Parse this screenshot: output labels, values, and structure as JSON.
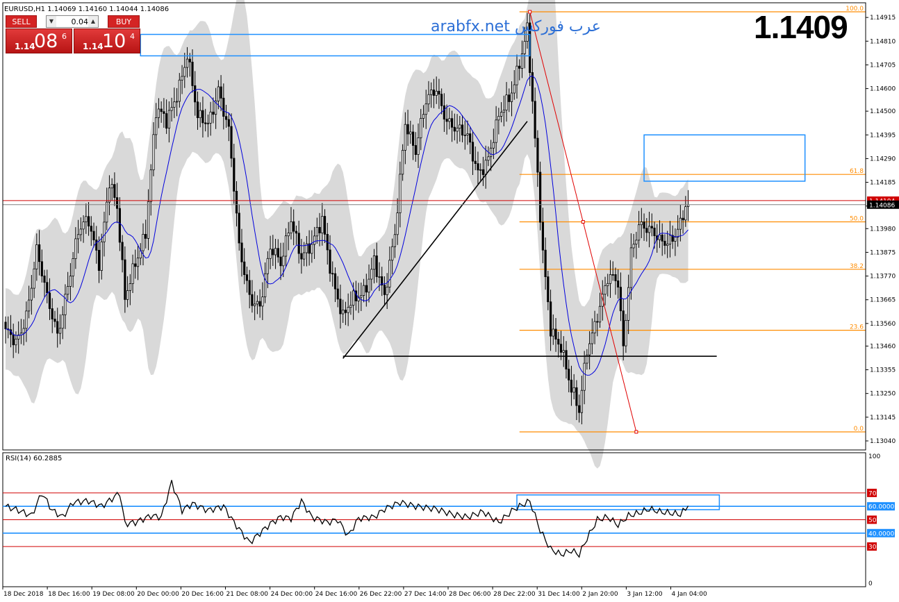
{
  "chart_header": "EURUSD,H1  1.14069 1.14160 1.14044 1.14086",
  "watermark": "arabfx.net عرب فوركس",
  "big_price": "1.1409",
  "trade_panel": {
    "sell_label": "SELL",
    "buy_label": "BUY",
    "lot": "0.04",
    "sell_small": "1.14",
    "sell_big": "08",
    "sell_sup": "6",
    "buy_small": "1.14",
    "buy_big": "10",
    "buy_sup": "4"
  },
  "colors": {
    "candle": "#000000",
    "envelope": "#d9d9d9",
    "ma": "#0000dd",
    "fib": "#ff8c00",
    "zone_box": "#1e90ff",
    "rsi_line": "#000000",
    "level_red": "#d00000",
    "level_blue": "#1e90ff",
    "bid_label": "#000000",
    "ask_label": "#d00000"
  },
  "chart_data": [
    {
      "type": "candlestick",
      "symbol": "EURUSD",
      "timeframe": "H1",
      "ohlc_last": {
        "open": 1.14069,
        "high": 1.1416,
        "low": 1.14044,
        "close": 1.14086
      },
      "y_ticks": [
        "1.14915",
        "1.14810",
        "1.14705",
        "1.14600",
        "1.14500",
        "1.14395",
        "1.14290",
        "1.14185",
        "1.14080",
        "1.13980",
        "1.13875",
        "1.13770",
        "1.13665",
        "1.13560",
        "1.13460",
        "1.13355",
        "1.13250",
        "1.13145",
        "1.13040"
      ],
      "ylim": [
        1.13,
        1.1498
      ],
      "x_ticks": [
        "18 Dec 2018",
        "18 Dec 16:00",
        "19 Dec 08:00",
        "20 Dec 00:00",
        "20 Dec 16:00",
        "21 Dec 08:00",
        "24 Dec 00:00",
        "24 Dec 16:00",
        "26 Dec 22:00",
        "27 Dec 14:00",
        "28 Dec 06:00",
        "28 Dec 22:00",
        "31 Dec 14:00",
        "2 Jan 20:00",
        "3 Jan 12:00",
        "4 Jan 04:00"
      ],
      "n_bars": 200,
      "bid_price": "1.14086",
      "ask_price": "1.14104",
      "bid": 1.14086,
      "ask": 1.14104,
      "anchors": [
        [
          0,
          1.135
        ],
        [
          4,
          1.1347
        ],
        [
          8,
          1.1362
        ],
        [
          12,
          1.1388
        ],
        [
          16,
          1.1365
        ],
        [
          20,
          1.1352
        ],
        [
          24,
          1.1375
        ],
        [
          28,
          1.1395
        ],
        [
          32,
          1.14
        ],
        [
          36,
          1.1385
        ],
        [
          40,
          1.142
        ],
        [
          43,
          1.1405
        ],
        [
          46,
          1.1365
        ],
        [
          50,
          1.1385
        ],
        [
          54,
          1.1398
        ],
        [
          58,
          1.1448
        ],
        [
          62,
          1.1445
        ],
        [
          66,
          1.146
        ],
        [
          70,
          1.1475
        ],
        [
          74,
          1.1445
        ],
        [
          78,
          1.1445
        ],
        [
          82,
          1.1462
        ],
        [
          86,
          1.144
        ],
        [
          90,
          1.1388
        ],
        [
          94,
          1.137
        ],
        [
          98,
          1.1365
        ],
        [
          102,
          1.1387
        ],
        [
          106,
          1.1382
        ],
        [
          110,
          1.1405
        ],
        [
          114,
          1.1385
        ],
        [
          118,
          1.1388
        ],
        [
          122,
          1.1403
        ],
        [
          126,
          1.1378
        ],
        [
          130,
          1.1357
        ],
        [
          134,
          1.1365
        ],
        [
          138,
          1.1372
        ],
        [
          142,
          1.1385
        ],
        [
          146,
          1.1365
        ],
        [
          150,
          1.1395
        ],
        [
          154,
          1.1448
        ],
        [
          158,
          1.1432
        ],
        [
          162,
          1.1452
        ],
        [
          166,
          1.1461
        ],
        [
          170,
          1.1448
        ],
        [
          174,
          1.144
        ],
        [
          178,
          1.1437
        ],
        [
          182,
          1.1425
        ],
        [
          186,
          1.143
        ],
        [
          190,
          1.1445
        ],
        [
          194,
          1.1455
        ],
        [
          198,
          1.1474
        ],
        [
          201,
          1.1487
        ],
        [
          204,
          1.1435
        ],
        [
          207,
          1.1385
        ],
        [
          210,
          1.1355
        ],
        [
          214,
          1.1348
        ],
        [
          218,
          1.1325
        ],
        [
          221,
          1.1315
        ],
        [
          224,
          1.1345
        ],
        [
          228,
          1.1362
        ],
        [
          232,
          1.1375
        ],
        [
          236,
          1.1372
        ],
        [
          238,
          1.1345
        ],
        [
          241,
          1.139
        ],
        [
          244,
          1.1401
        ],
        [
          248,
          1.1395
        ],
        [
          252,
          1.1392
        ],
        [
          256,
          1.1395
        ],
        [
          260,
          1.14
        ],
        [
          263,
          1.1409
        ]
      ],
      "fibonacci": [
        {
          "level": "100.0",
          "price": 1.1494
        },
        {
          "level": "61.8",
          "price": 1.1422
        },
        {
          "level": "50.0",
          "price": 1.1401
        },
        {
          "level": "38.2",
          "price": 1.138
        },
        {
          "level": "23.6",
          "price": 1.1353
        },
        {
          "level": "0.0",
          "price": 1.1308
        }
      ],
      "zones": [
        {
          "from_bar": 52,
          "to_bar": 202,
          "low": 1.14745,
          "high": 1.1484
        },
        {
          "from_bar": 246,
          "to_bar": 308,
          "low": 1.1419,
          "high": 1.14395
        }
      ],
      "trendlines": [
        {
          "bar1": 130,
          "p1": 1.13405,
          "bar2": 201,
          "p2": 1.14455
        },
        {
          "bar1": 130,
          "p1": 1.13415,
          "bar2": 274,
          "p2": 1.13415
        }
      ],
      "fib_anchor_line": {
        "bar1": 202,
        "p1": 1.1494,
        "bar2": 243,
        "p2": 1.1308
      }
    },
    {
      "type": "line",
      "indicator": "RSI(14)",
      "label": "RSI(14) 60.2885",
      "current": 60.2885,
      "ylim": [
        0,
        100
      ],
      "y_ticks": [
        "100",
        "70",
        "60.0000",
        "50",
        "40.0000",
        "30",
        "0"
      ],
      "levels_red": [
        70,
        50,
        30
      ],
      "levels_blue": [
        60,
        40
      ],
      "zone": {
        "from_bar": 197,
        "to_bar": 275,
        "low": 57.5,
        "high": 68.5
      },
      "anchors": [
        [
          0,
          60
        ],
        [
          5,
          57
        ],
        [
          10,
          53
        ],
        [
          14,
          70
        ],
        [
          18,
          57
        ],
        [
          22,
          52
        ],
        [
          26,
          63
        ],
        [
          32,
          64
        ],
        [
          37,
          60
        ],
        [
          44,
          70
        ],
        [
          46,
          47
        ],
        [
          50,
          48
        ],
        [
          56,
          53
        ],
        [
          60,
          52
        ],
        [
          64,
          78
        ],
        [
          68,
          57
        ],
        [
          72,
          62
        ],
        [
          78,
          57
        ],
        [
          84,
          60
        ],
        [
          88,
          48
        ],
        [
          94,
          33
        ],
        [
          98,
          40
        ],
        [
          102,
          47
        ],
        [
          106,
          52
        ],
        [
          110,
          51
        ],
        [
          114,
          64
        ],
        [
          118,
          52
        ],
        [
          124,
          48
        ],
        [
          128,
          50
        ],
        [
          132,
          38
        ],
        [
          136,
          51
        ],
        [
          142,
          52
        ],
        [
          146,
          58
        ],
        [
          152,
          63
        ],
        [
          158,
          60
        ],
        [
          166,
          58
        ],
        [
          172,
          54
        ],
        [
          178,
          52
        ],
        [
          184,
          56
        ],
        [
          190,
          48
        ],
        [
          196,
          58
        ],
        [
          202,
          64
        ],
        [
          206,
          42
        ],
        [
          210,
          28
        ],
        [
          214,
          24
        ],
        [
          218,
          27
        ],
        [
          221,
          24
        ],
        [
          224,
          36
        ],
        [
          228,
          50
        ],
        [
          232,
          52
        ],
        [
          236,
          46
        ],
        [
          240,
          53
        ],
        [
          244,
          55
        ],
        [
          248,
          58
        ],
        [
          252,
          56
        ],
        [
          256,
          55
        ],
        [
          260,
          54
        ],
        [
          263,
          60
        ]
      ]
    }
  ]
}
